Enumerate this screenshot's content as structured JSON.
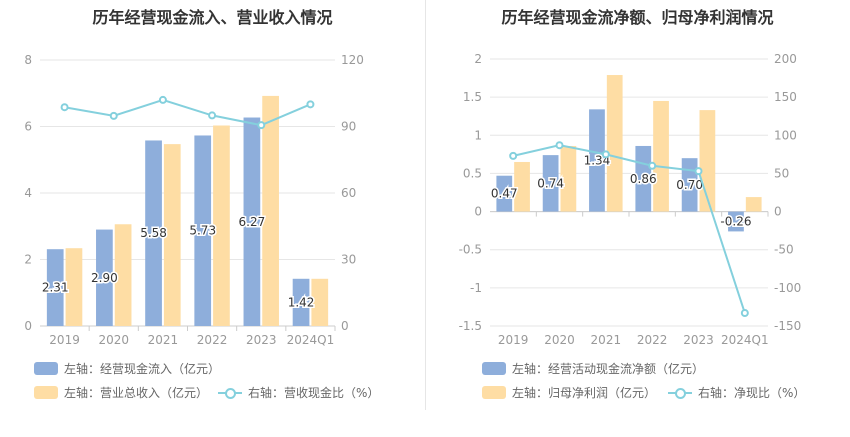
{
  "chart_data": [
    {
      "type": "bar",
      "title": "历年经营现金流入、营业收入情况",
      "categories": [
        "2019",
        "2020",
        "2021",
        "2022",
        "2023",
        "2024Q1"
      ],
      "left_axis": {
        "min": 0,
        "max": 8,
        "ticks": [
          "0",
          "2",
          "4",
          "6",
          "8"
        ]
      },
      "right_axis": {
        "min": 0,
        "max": 120,
        "ticks": [
          "0",
          "30",
          "60",
          "90",
          "120"
        ]
      },
      "series": [
        {
          "name": "左轴：经营现金流入（亿元）",
          "type": "bar",
          "axis": "left",
          "color": "#8eaedb",
          "values": [
            2.31,
            2.9,
            5.58,
            5.73,
            6.27,
            1.42
          ],
          "labels": [
            "2.31",
            "2.90",
            "5.58",
            "5.73",
            "6.27",
            "1.42"
          ]
        },
        {
          "name": "左轴：营业总收入（亿元）",
          "type": "bar",
          "axis": "left",
          "color": "#fedda4",
          "values": [
            2.34,
            3.06,
            5.47,
            6.03,
            6.92,
            1.42
          ]
        },
        {
          "name": "右轴：营收现金比（%）",
          "type": "line",
          "axis": "right",
          "color": "#84d0dd",
          "values": [
            98.7,
            94.8,
            102.0,
            95.0,
            90.6,
            100.0
          ]
        }
      ],
      "grid": true,
      "legend_position": "bottom-left"
    },
    {
      "type": "bar",
      "title": "历年经营现金流净额、归母净利润情况",
      "categories": [
        "2019",
        "2020",
        "2021",
        "2022",
        "2023",
        "2024Q1"
      ],
      "left_axis": {
        "min": -1.5,
        "max": 2,
        "ticks": [
          "-1.5",
          "-1",
          "-0.5",
          "0",
          "0.5",
          "1",
          "1.5",
          "2"
        ]
      },
      "right_axis": {
        "min": -150,
        "max": 200,
        "ticks": [
          "-150",
          "-100",
          "-50",
          "0",
          "50",
          "100",
          "150",
          "200"
        ]
      },
      "series": [
        {
          "name": "左轴：经营活动现金流净额（亿元）",
          "type": "bar",
          "axis": "left",
          "color": "#8eaedb",
          "values": [
            0.47,
            0.74,
            1.34,
            0.86,
            0.7,
            -0.26
          ],
          "labels": [
            "0.47",
            "0.74",
            "1.34",
            "0.86",
            "0.70",
            "-0.26"
          ]
        },
        {
          "name": "左轴：归母净利润（亿元）",
          "type": "bar",
          "axis": "left",
          "color": "#fedda4",
          "values": [
            0.65,
            0.86,
            1.79,
            1.45,
            1.33,
            0.19
          ]
        },
        {
          "name": "右轴：净现比（%）",
          "type": "line",
          "axis": "right",
          "color": "#84d0dd",
          "values": [
            73,
            87,
            75,
            60,
            53,
            -133
          ]
        }
      ],
      "grid": true,
      "legend_position": "bottom-left"
    }
  ]
}
